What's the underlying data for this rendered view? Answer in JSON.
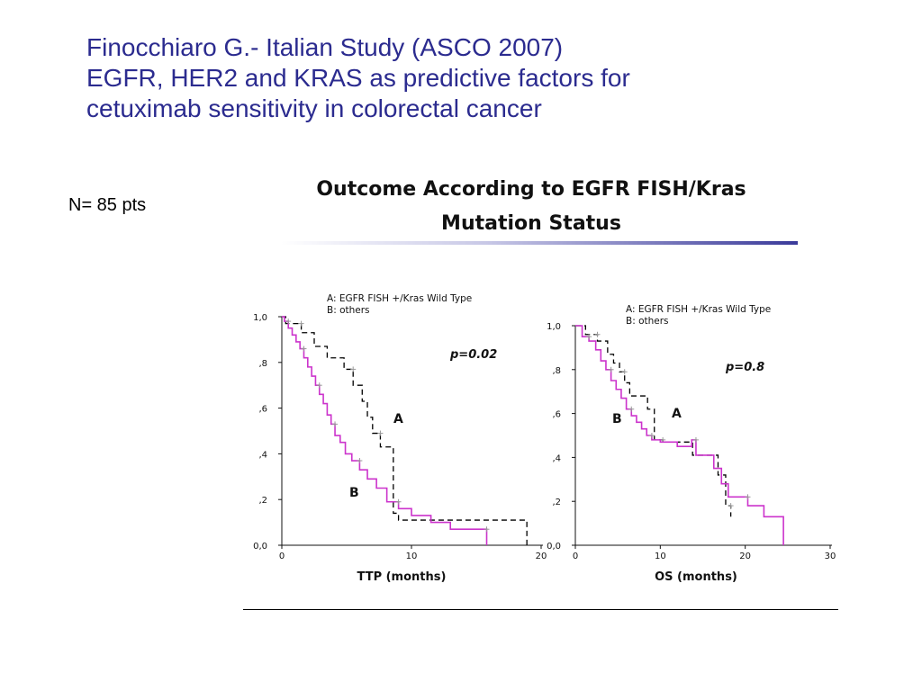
{
  "slide": {
    "title_lines": [
      "Finocchiaro G.- Italian Study (ASCO 2007)",
      "EGFR, HER2 and KRAS as predictive factors for",
      "cetuximab sensitivity in colorectal cancer"
    ],
    "n_label": "N= 85 pts",
    "figure_heading_lines": [
      "Outcome According to EGFR FISH/Kras",
      "Mutation Status"
    ]
  },
  "colors": {
    "title": "#2b2b8f",
    "series_A": "#000000",
    "series_B": "#cc33cc"
  },
  "chart_data": [
    {
      "type": "line",
      "step": true,
      "xlabel": "TTP (months)",
      "ylabel": "",
      "xlim": [
        0,
        20
      ],
      "ylim": [
        0,
        1
      ],
      "x_ticks": [
        "0",
        "10",
        "20"
      ],
      "y_ticks": [
        "0,0",
        ",2",
        ",4",
        ",6",
        ",8",
        "1,0"
      ],
      "legend": [
        "A: EGFR FISH +/Kras Wild Type",
        "B: others"
      ],
      "annotation": "p=0.02",
      "series": [
        {
          "name": "A",
          "style": "dashed",
          "color": "#000000",
          "x": [
            0,
            0.3,
            1.5,
            2.5,
            3.5,
            4.8,
            5.5,
            6.2,
            6.6,
            7.0,
            7.6,
            8.6,
            9.0,
            18.9
          ],
          "y": [
            1.0,
            0.97,
            0.93,
            0.87,
            0.82,
            0.77,
            0.7,
            0.63,
            0.56,
            0.49,
            0.43,
            0.14,
            0.11,
            0.0
          ]
        },
        {
          "name": "B",
          "style": "solid",
          "color": "#cc33cc",
          "x": [
            0,
            0.2,
            0.5,
            0.8,
            1.1,
            1.4,
            1.7,
            2.0,
            2.3,
            2.6,
            2.9,
            3.2,
            3.5,
            3.8,
            4.1,
            4.5,
            4.9,
            5.4,
            6.0,
            6.6,
            7.3,
            8.1,
            9.0,
            10.0,
            11.5,
            13.0,
            15.8
          ],
          "y": [
            1.0,
            0.98,
            0.95,
            0.92,
            0.89,
            0.86,
            0.82,
            0.78,
            0.74,
            0.7,
            0.66,
            0.62,
            0.57,
            0.53,
            0.48,
            0.45,
            0.4,
            0.37,
            0.33,
            0.29,
            0.25,
            0.19,
            0.16,
            0.13,
            0.1,
            0.07,
            0.0
          ]
        }
      ]
    },
    {
      "type": "line",
      "step": true,
      "xlabel": "OS (months)",
      "ylabel": "",
      "xlim": [
        0,
        30
      ],
      "ylim": [
        0,
        1
      ],
      "x_ticks": [
        "0",
        "10",
        "20",
        "30"
      ],
      "y_ticks": [
        "0,0",
        ",2",
        ",4",
        ",6",
        ",8",
        "1,0"
      ],
      "legend": [
        "A: EGFR FISH +/Kras Wild Type",
        "B: others"
      ],
      "annotation": "p=0.8",
      "series": [
        {
          "name": "A",
          "style": "dashed",
          "color": "#000000",
          "x": [
            0,
            1.2,
            2.6,
            3.8,
            4.5,
            5.2,
            5.8,
            6.4,
            8.5,
            9.3,
            10.3,
            13.8,
            16.8,
            17.7,
            18.3
          ],
          "y": [
            1.0,
            0.96,
            0.93,
            0.87,
            0.83,
            0.79,
            0.74,
            0.68,
            0.62,
            0.48,
            0.47,
            0.41,
            0.32,
            0.18,
            0.13
          ]
        },
        {
          "name": "B",
          "style": "solid",
          "color": "#cc33cc",
          "x": [
            0,
            0.8,
            1.6,
            2.4,
            3.0,
            3.6,
            4.2,
            4.8,
            5.4,
            6.0,
            6.6,
            7.2,
            7.8,
            8.4,
            9.0,
            10.0,
            12.0,
            13.7,
            14.2,
            16.3,
            17.2,
            18.0,
            20.3,
            22.2,
            24.5
          ],
          "y": [
            1.0,
            0.95,
            0.93,
            0.89,
            0.84,
            0.8,
            0.75,
            0.71,
            0.67,
            0.62,
            0.59,
            0.56,
            0.53,
            0.5,
            0.48,
            0.47,
            0.45,
            0.48,
            0.41,
            0.35,
            0.28,
            0.22,
            0.18,
            0.13,
            0.0
          ]
        }
      ]
    }
  ]
}
